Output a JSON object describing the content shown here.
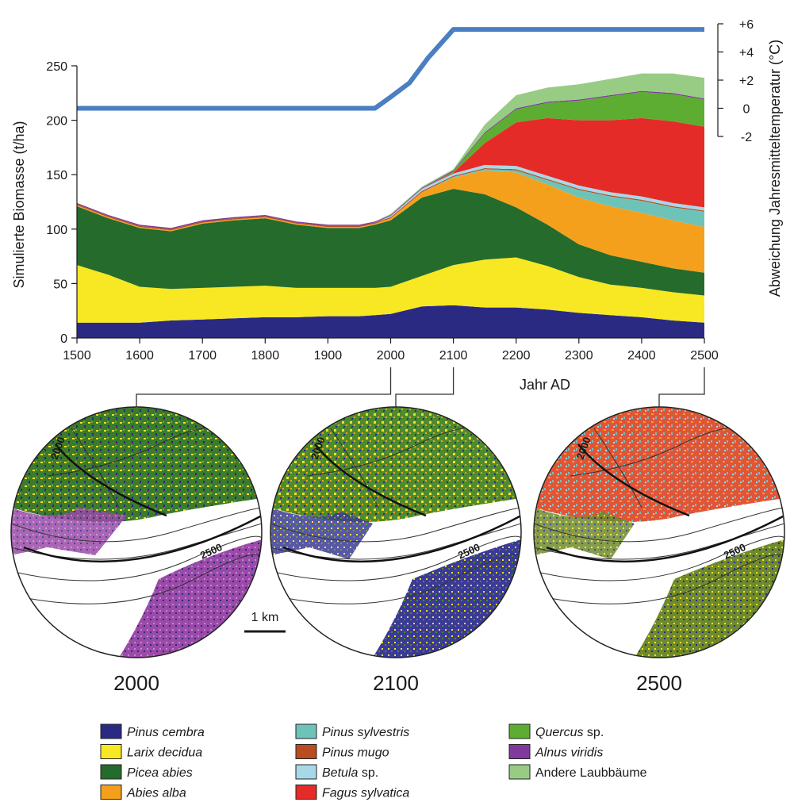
{
  "chart_data": {
    "type": "area",
    "stacked": true,
    "xlabel": "Jahr AD",
    "ylabel": "Simulierte Biomasse (t/ha)",
    "y2label": "Abweichung Jahresmitteltemperatur (°C)",
    "xlim": [
      1500,
      2500
    ],
    "ylim": [
      0,
      250
    ],
    "y2lim": [
      -2,
      6
    ],
    "x_ticks": [
      1500,
      1600,
      1700,
      1800,
      1900,
      2000,
      2100,
      2200,
      2300,
      2400,
      2500
    ],
    "y_ticks": [
      0,
      50,
      100,
      150,
      200,
      250
    ],
    "y2_ticks": [
      "-2",
      "0",
      "+2",
      "+4",
      "+6"
    ],
    "y2_tick_values": [
      -2,
      0,
      2,
      4,
      6
    ],
    "x": [
      1500,
      1550,
      1600,
      1650,
      1700,
      1750,
      1800,
      1850,
      1900,
      1950,
      1975,
      2000,
      2050,
      2100,
      2150,
      2200,
      2250,
      2300,
      2350,
      2400,
      2450,
      2500
    ],
    "series": [
      {
        "name": "Pinus cembra",
        "color": "#2b2a83",
        "values": [
          14,
          14,
          14,
          16,
          17,
          18,
          19,
          19,
          20,
          20,
          21,
          22,
          29,
          30,
          28,
          28,
          26,
          23,
          21,
          19,
          16,
          14
        ]
      },
      {
        "name": "Larix decidua",
        "color": "#f7e823",
        "values": [
          53,
          44,
          33,
          29,
          29,
          29,
          29,
          27,
          26,
          26,
          25,
          25,
          28,
          37,
          44,
          46,
          40,
          33,
          28,
          27,
          26,
          25
        ]
      },
      {
        "name": "Picea abies",
        "color": "#256b2c",
        "values": [
          54,
          52,
          54,
          53,
          59,
          61,
          62,
          58,
          55,
          55,
          58,
          61,
          72,
          70,
          60,
          46,
          38,
          30,
          27,
          24,
          22,
          21
        ]
      },
      {
        "name": "Abies alba",
        "color": "#f5a01d",
        "values": [
          1,
          1,
          1,
          1,
          1,
          1,
          1,
          1,
          1,
          1,
          1,
          2,
          5,
          10,
          22,
          32,
          37,
          43,
          45,
          45,
          44,
          42
        ]
      },
      {
        "name": "Pinus sylvestris",
        "color": "#6ec3b8",
        "values": [
          0,
          0,
          0,
          0,
          0,
          0,
          0,
          0,
          0,
          0,
          0,
          0,
          0,
          1,
          1,
          2,
          4,
          7,
          9,
          11,
          12,
          14
        ]
      },
      {
        "name": "Pinus mugo",
        "color": "#b84d21",
        "values": [
          1,
          1,
          1,
          1,
          1,
          1,
          1,
          1,
          1,
          1,
          1,
          1,
          1,
          1,
          1,
          1,
          1,
          1,
          1,
          1,
          1,
          1
        ]
      },
      {
        "name": "Betula sp.",
        "color": "#a7d8e8",
        "values": [
          0,
          0,
          0,
          0,
          0,
          0,
          0,
          0,
          0,
          0,
          0,
          1,
          2,
          2,
          3,
          3,
          3,
          3,
          3,
          3,
          3,
          3
        ]
      },
      {
        "name": "Fagus sylvatica",
        "color": "#e52b27",
        "values": [
          0,
          0,
          0,
          0,
          0,
          0,
          0,
          0,
          0,
          0,
          0,
          0,
          0,
          1,
          20,
          40,
          53,
          60,
          66,
          72,
          75,
          74
        ]
      },
      {
        "name": "Quercus sp.",
        "color": "#5cad32",
        "values": [
          0,
          0,
          0,
          0,
          0,
          0,
          0,
          0,
          0,
          0,
          0,
          0,
          0,
          1,
          9,
          12,
          14,
          18,
          22,
          24,
          25,
          25
        ]
      },
      {
        "name": "Alnus viridis",
        "color": "#7f3a9c",
        "values": [
          1,
          1,
          1,
          1,
          1,
          1,
          1,
          1,
          1,
          1,
          1,
          1,
          1,
          1,
          1,
          1,
          1,
          1,
          1,
          1,
          1,
          1
        ]
      },
      {
        "name": "Andere Laubbäume",
        "color": "#98cc85",
        "values": [
          0,
          0,
          0,
          0,
          0,
          0,
          0,
          0,
          0,
          0,
          0,
          1,
          1,
          1,
          7,
          12,
          13,
          14,
          15,
          16,
          18,
          19
        ]
      }
    ],
    "temperature": {
      "color": "#4a7fc1",
      "x": [
        1500,
        1975,
        2000,
        2030,
        2060,
        2100,
        2500
      ],
      "values": [
        0,
        0,
        0.8,
        1.8,
        3.6,
        5.6,
        5.6
      ]
    },
    "maps": [
      {
        "year": "2000",
        "linked_x": 2000
      },
      {
        "year": "2100",
        "linked_x": 2100
      },
      {
        "year": "2500",
        "linked_x": 2500
      }
    ],
    "map_contour_labels": [
      "2000",
      "2500"
    ],
    "scale_bar_label": "1 km",
    "legend": [
      {
        "italic": "Pinus cembra",
        "normal": "",
        "color": "#2b2a83"
      },
      {
        "italic": "Larix decidua",
        "normal": "",
        "color": "#f7e823"
      },
      {
        "italic": "Picea abies",
        "normal": "",
        "color": "#256b2c"
      },
      {
        "italic": "Abies alba",
        "normal": "",
        "color": "#f5a01d"
      },
      {
        "italic": "Pinus sylvestris",
        "normal": "",
        "color": "#6ec3b8"
      },
      {
        "italic": "Pinus mugo",
        "normal": "",
        "color": "#b84d21"
      },
      {
        "italic": "Betula",
        "normal": " sp.",
        "color": "#a7d8e8"
      },
      {
        "italic": "Fagus sylvatica",
        "normal": "",
        "color": "#e52b27"
      },
      {
        "italic": "Quercus",
        "normal": " sp.",
        "color": "#5cad32"
      },
      {
        "italic": "Alnus viridis",
        "normal": "",
        "color": "#7f3a9c"
      },
      {
        "italic": "",
        "normal": "Andere Laubbäume",
        "color": "#98cc85"
      }
    ]
  }
}
